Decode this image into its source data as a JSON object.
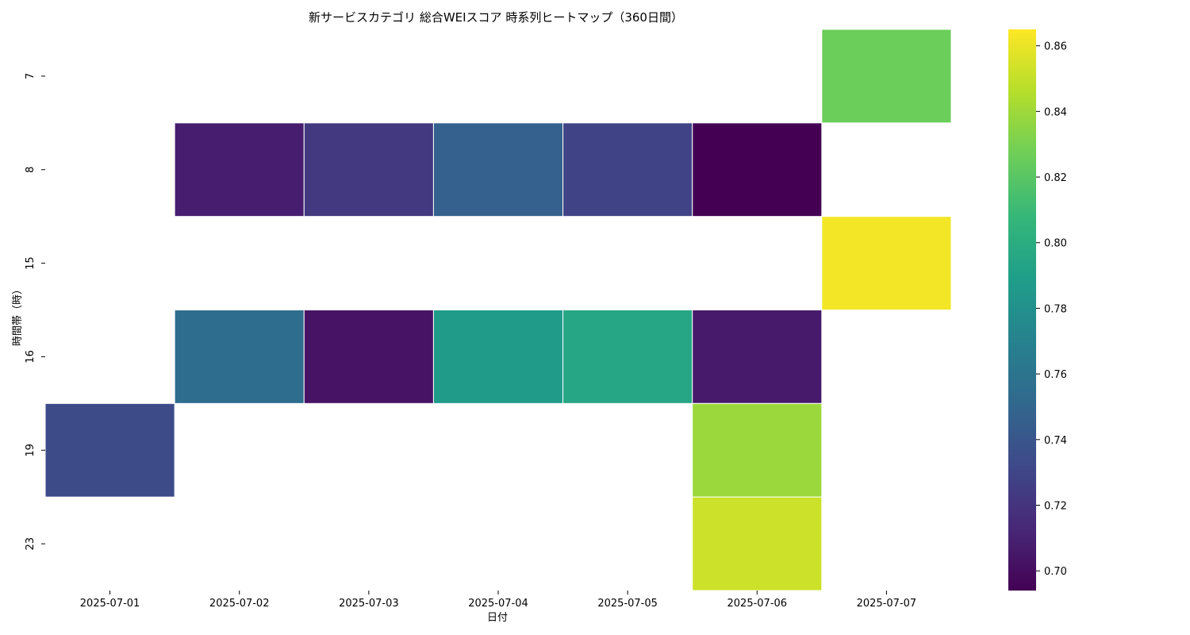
{
  "chart_data": {
    "type": "heatmap",
    "title": "新サービスカテゴリ 総合WEIスコア 時系列ヒートマップ（360日間）",
    "xlabel": "日付",
    "ylabel": "時間帯（時）",
    "x_categories": [
      "2025-07-01",
      "2025-07-02",
      "2025-07-03",
      "2025-07-04",
      "2025-07-05",
      "2025-07-06",
      "2025-07-07"
    ],
    "y_categories": [
      "7",
      "8",
      "15",
      "16",
      "19",
      "23"
    ],
    "values": [
      [
        null,
        null,
        null,
        null,
        null,
        null,
        0.826
      ],
      [
        null,
        0.708,
        0.723,
        0.747,
        0.729,
        0.694,
        null
      ],
      [
        null,
        null,
        null,
        null,
        null,
        null,
        0.862
      ],
      [
        null,
        0.755,
        0.703,
        0.787,
        0.795,
        0.706,
        null
      ],
      [
        0.733,
        null,
        null,
        null,
        null,
        0.839,
        null
      ],
      [
        null,
        null,
        null,
        null,
        null,
        0.852,
        null
      ]
    ],
    "colorbar": {
      "colormap": "viridis",
      "vmin": 0.694,
      "vmax": 0.865,
      "ticks": [
        "0.70",
        "0.72",
        "0.74",
        "0.76",
        "0.78",
        "0.80",
        "0.82",
        "0.84",
        "0.86"
      ]
    }
  }
}
